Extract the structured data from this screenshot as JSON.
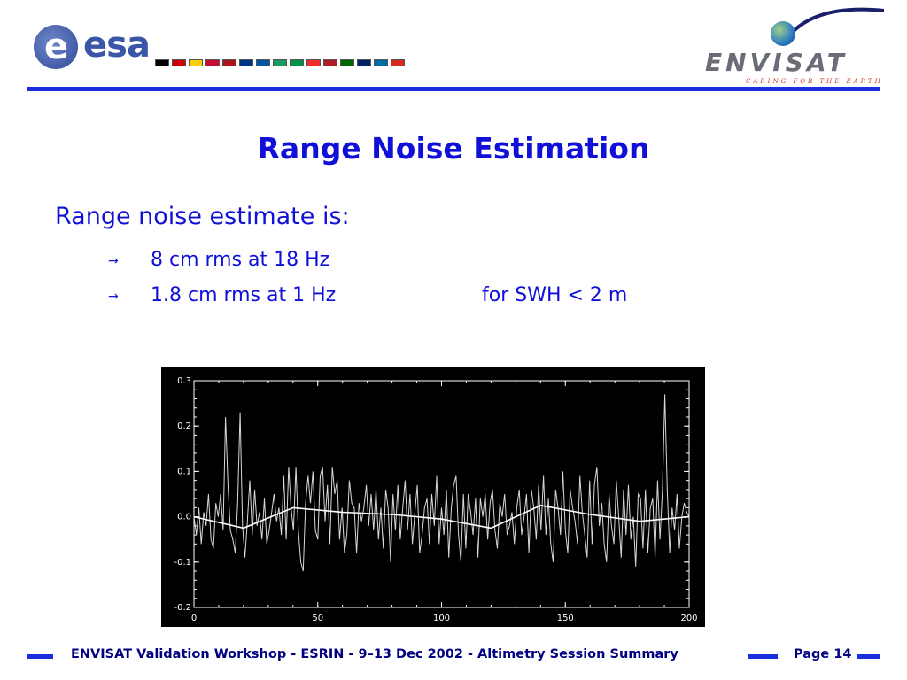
{
  "header": {
    "esa_logo_text": "esa",
    "envisat_logo_text": "ENVISAT",
    "envisat_tagline": "CARING FOR THE EARTH",
    "flag_colors": [
      "#000000",
      "#d00000",
      "#ffce00",
      "#c60c30",
      "#aa151b",
      "#003580",
      "#0055a4",
      "#169b62",
      "#009246",
      "#ef2b2d",
      "#ae1c28",
      "#006600",
      "#012169",
      "#006aa7",
      "#d52b1e"
    ]
  },
  "slide": {
    "title": "Range Noise Estimation",
    "intro": "Range noise estimate is:",
    "bullets": [
      {
        "text": "8 cm rms at 18 Hz",
        "note": ""
      },
      {
        "text": "1.8 cm rms at 1 Hz",
        "note": "for SWH < 2 m"
      }
    ],
    "bullet_glyph": "→"
  },
  "chart_data": {
    "type": "line",
    "background": "#000000",
    "foreground": "#ffffff",
    "xlim": [
      0,
      200
    ],
    "ylim": [
      -0.2,
      0.3
    ],
    "x_ticks": [
      0,
      50,
      100,
      150,
      200
    ],
    "x_tick_labels": [
      "0",
      "50",
      "100",
      "150",
      "200"
    ],
    "y_ticks": [
      -0.2,
      -0.1,
      0.0,
      0.1,
      0.2,
      0.3
    ],
    "y_tick_labels": [
      "-0.2",
      "-0.1",
      "0.0",
      "0.1",
      "0.2",
      "0.3"
    ],
    "series": [
      {
        "values": [
          0.0,
          -0.04,
          0.02,
          -0.06,
          0.01,
          -0.02,
          0.05,
          -0.05,
          -0.07,
          0.03,
          0.0,
          0.05,
          -0.03,
          0.22,
          0.07,
          -0.03,
          -0.05,
          -0.08,
          0.03,
          0.23,
          -0.02,
          -0.09,
          -0.01,
          0.08,
          -0.04,
          0.06,
          -0.02,
          0.01,
          -0.05,
          0.04,
          -0.06,
          -0.03,
          0.01,
          0.05,
          -0.01,
          0.02,
          -0.04,
          0.09,
          -0.05,
          0.11,
          0.02,
          -0.03,
          0.11,
          -0.03,
          -0.1,
          -0.12,
          0.03,
          0.09,
          0.03,
          0.1,
          -0.03,
          -0.05,
          0.09,
          0.11,
          -0.01,
          0.07,
          -0.06,
          0.11,
          0.05,
          0.08,
          -0.05,
          0.02,
          -0.08,
          -0.04,
          0.08,
          0.03,
          0.02,
          -0.08,
          0.03,
          -0.01,
          0.02,
          0.07,
          -0.02,
          0.05,
          -0.03,
          0.06,
          -0.05,
          0.02,
          -0.07,
          0.06,
          0.02,
          -0.1,
          0.05,
          -0.03,
          0.07,
          -0.05,
          0.02,
          0.08,
          -0.03,
          0.05,
          -0.06,
          0.01,
          0.07,
          -0.08,
          -0.04,
          0.02,
          0.04,
          -0.06,
          0.05,
          -0.02,
          0.09,
          -0.06,
          0.02,
          -0.04,
          0.06,
          -0.09,
          0.02,
          0.07,
          0.09,
          -0.04,
          -0.1,
          0.05,
          -0.07,
          0.05,
          0.01,
          -0.04,
          0.04,
          -0.09,
          0.04,
          0.0,
          0.05,
          -0.05,
          0.03,
          0.06,
          -0.03,
          -0.07,
          0.03,
          0.0,
          0.05,
          -0.04,
          -0.02,
          0.01,
          -0.06,
          0.02,
          0.06,
          -0.04,
          0.0,
          0.05,
          -0.08,
          0.06,
          0.02,
          -0.05,
          0.07,
          -0.03,
          0.09,
          -0.04,
          0.04,
          -0.06,
          -0.1,
          0.06,
          0.02,
          -0.04,
          0.1,
          -0.03,
          -0.08,
          0.06,
          0.02,
          -0.01,
          -0.06,
          0.09,
          0.01,
          -0.04,
          -0.09,
          0.08,
          -0.06,
          0.07,
          0.11,
          -0.02,
          0.03,
          -0.06,
          -0.1,
          0.05,
          -0.02,
          -0.06,
          0.08,
          0.0,
          -0.09,
          0.06,
          -0.04,
          0.07,
          -0.05,
          0.0,
          -0.11,
          0.05,
          0.04,
          -0.07,
          0.06,
          -0.08,
          0.02,
          0.04,
          -0.09,
          0.08,
          -0.05,
          0.06,
          0.27,
          0.06,
          -0.08,
          0.02,
          -0.03,
          0.05,
          -0.07,
          0.0,
          0.03,
          0.01,
          0.0
        ]
      },
      {
        "x": [
          0,
          20,
          40,
          60,
          80,
          100,
          120,
          140,
          160,
          180,
          200
        ],
        "values": [
          0.0,
          -0.025,
          0.02,
          0.01,
          0.005,
          -0.005,
          -0.025,
          0.025,
          0.005,
          -0.01,
          0.0
        ]
      }
    ]
  },
  "footer": {
    "text": "ENVISAT Validation Workshop - ESRIN - 9–13 Dec 2002 - Altimetry Session Summary",
    "page": "Page 14"
  }
}
